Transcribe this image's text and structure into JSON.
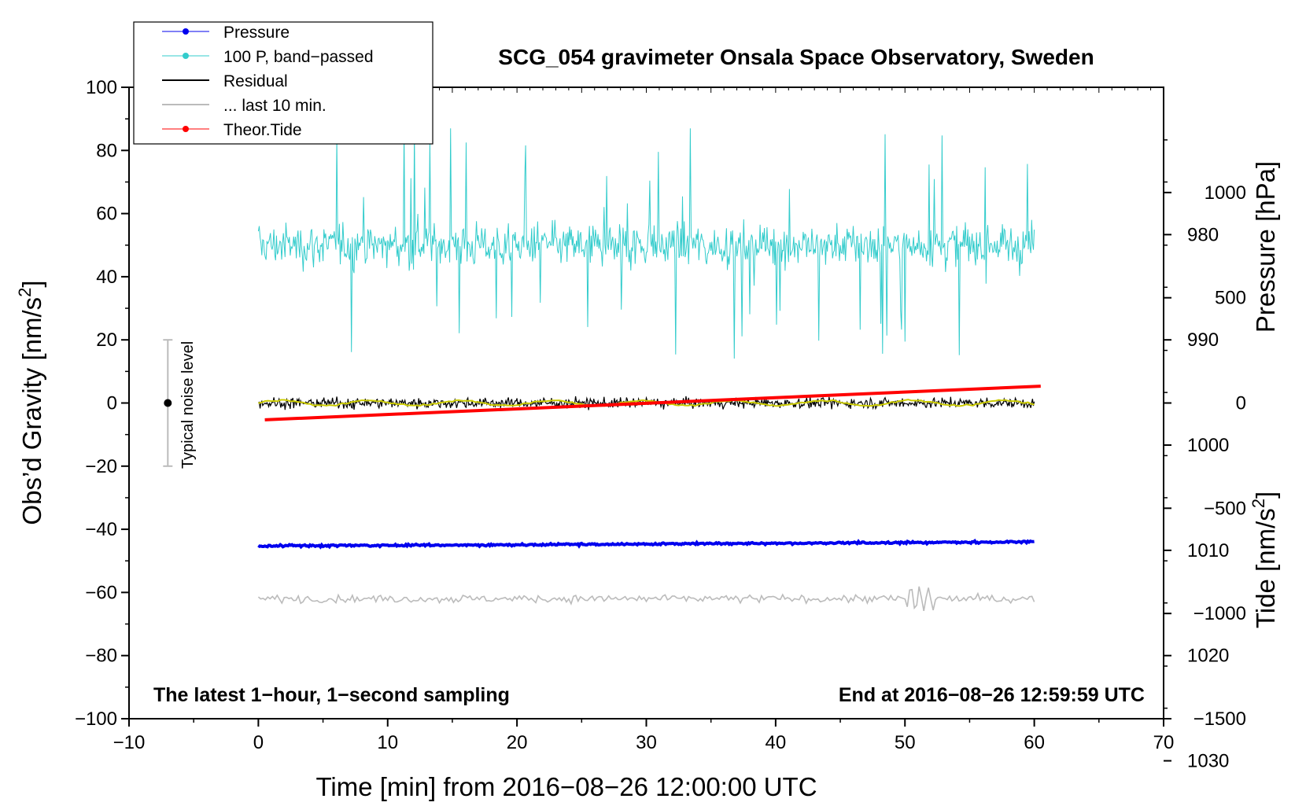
{
  "chart_data": {
    "type": "line",
    "title": "SCG_054 gravimeter Onsala Space Observatory, Sweden",
    "xlabel": "Time [min] from 2016−08−26 12:00:00 UTC",
    "ylabel": "Obs’d Gravity [nm/s",
    "ylabel_sup": "2",
    "ylabel_close": "]",
    "y2label": "Pressure [hPa]",
    "y3label": "Tide [nm/s",
    "y3label_sup": "2",
    "y3label_close": "]",
    "xlim": [
      -10,
      70
    ],
    "ylim": [
      -100,
      100
    ],
    "y2lim": [
      1026,
      966
    ],
    "y3lim": [
      -1500,
      1500
    ],
    "x_ticks": [
      "−10",
      "0",
      "10",
      "20",
      "30",
      "40",
      "50",
      "60",
      "70"
    ],
    "y_ticks": [
      "−100",
      "−80",
      "−60",
      "−40",
      "−20",
      "0",
      "20",
      "40",
      "60",
      "80",
      "100"
    ],
    "y2_ticks": [
      "1030",
      "1020",
      "1010",
      "1000",
      "990",
      "980"
    ],
    "y3_ticks": [
      "1000",
      "500",
      "0",
      "−500",
      "−1000",
      "−1500"
    ],
    "legend": [
      {
        "label": "Pressure",
        "color": "#0000ee",
        "marker": true
      },
      {
        "label": "100 P, band−passed",
        "color": "#33cccc",
        "marker": true
      },
      {
        "label": "Residual",
        "color": "#000000",
        "marker": false
      },
      {
        "label": "... last 10 min.",
        "color": "#bbbbbb",
        "marker": false
      },
      {
        "label": "Theor.Tide",
        "color": "#ff0000",
        "marker": true
      }
    ],
    "legend_position": "top-left",
    "annotations": {
      "bottom_left": "The latest 1−hour, 1−second sampling",
      "bottom_right": "End at 2016−08−26 12:59:59 UTC",
      "noise": "Typical noise level"
    },
    "noise_bar": {
      "x": -7,
      "y": 0,
      "low": -20,
      "high": 20
    },
    "series": [
      {
        "name": "Pressure",
        "axis": "y2",
        "color": "#0000ee",
        "x_start": 0,
        "x_end": 60,
        "start": 1009.6,
        "end": 1009.2,
        "noise": 0.2
      },
      {
        "name": "100 P, band-passed",
        "axis": "y",
        "color": "#33cccc",
        "x_start": 0,
        "x_end": 60,
        "mean": 50,
        "min": 9,
        "max": 87
      },
      {
        "name": "Residual",
        "axis": "y",
        "color": "#000000",
        "x_start": 0,
        "x_end": 60,
        "mean": 0,
        "min": -5,
        "max": 5
      },
      {
        "name": "Residual smoothed",
        "axis": "y",
        "color": "#cccc00",
        "x_start": 0,
        "x_end": 60,
        "mean": 0
      },
      {
        "name": "... last 10 min.",
        "axis": "y",
        "color": "#bbbbbb",
        "x_start": 0,
        "x_end": 60,
        "mean": -62,
        "min": -67,
        "max": -56
      },
      {
        "name": "Theor.Tide",
        "axis": "y3",
        "color": "#ff0000",
        "x_start": 0.5,
        "x_end": 60.5,
        "start": -80,
        "end": 80
      }
    ]
  }
}
